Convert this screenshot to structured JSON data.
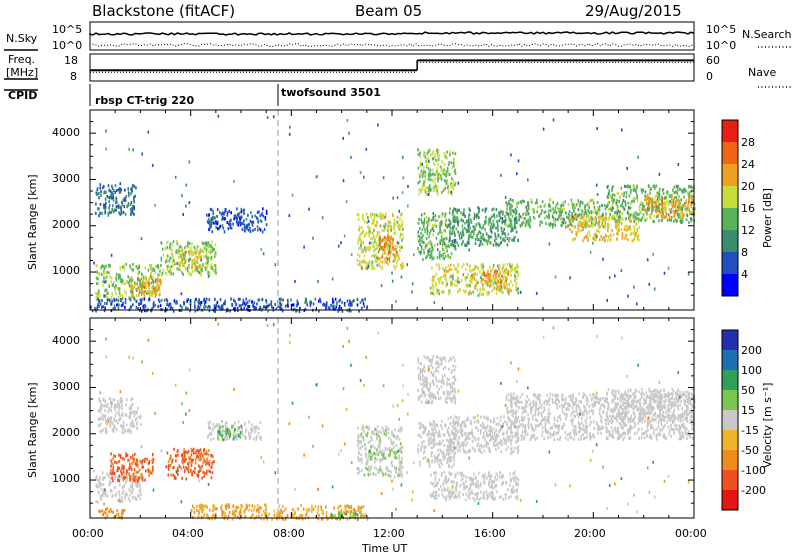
{
  "header": {
    "station": "Blackstone (fitACF)",
    "beam": "Beam 05",
    "date": "29/Aug/2015"
  },
  "status_panels": {
    "nsky_label": "N.Sky",
    "nsearch_label": "N.Search",
    "freq_label_line1": "Freq.",
    "freq_label_line2": "[MHz]",
    "nave_label": "Nave",
    "cpid_label": "CPID",
    "noise_left_ticks": [
      "10^5",
      "10^0"
    ],
    "noise_right_ticks": [
      "10^5",
      "10^0"
    ],
    "freq_left_ticks": [
      "18",
      "8"
    ],
    "freq_right_ticks": [
      "60",
      "0"
    ],
    "cpid_segments": [
      {
        "label": "rbsp CT-trig 220",
        "start_hour": 0
      },
      {
        "label": "twofsound 3501",
        "start_hour": 7.5
      }
    ]
  },
  "axes": {
    "x_label": "Time UT",
    "x_ticks": [
      "00:00",
      "04:00",
      "08:00",
      "12:00",
      "16:00",
      "20:00",
      "00:00"
    ],
    "y_label": "Slant Range [km]",
    "y_ticks": [
      "1000",
      "2000",
      "3000",
      "4000"
    ]
  },
  "power_colorbar": {
    "label": "Power [dB]",
    "ticks": [
      "4",
      "8",
      "12",
      "16",
      "20",
      "24",
      "28"
    ],
    "colors": [
      "#0000ff",
      "#2050c0",
      "#3a8c6a",
      "#57b25a",
      "#c8dc3c",
      "#f0a020",
      "#f06414",
      "#e61e14"
    ]
  },
  "velocity_colorbar": {
    "label": "Velocity [m s⁻¹]",
    "ticks": [
      "200",
      "100",
      "50",
      "15",
      "-15",
      "-50",
      "-100",
      "-200"
    ],
    "colors": [
      "#2030b0",
      "#1e6eb4",
      "#2ea05a",
      "#78c850",
      "#c8c8c8",
      "#f0b428",
      "#f08c1e",
      "#f0501e",
      "#e61414"
    ]
  },
  "chart_data": {
    "type": "heatmap",
    "x_unit": "hours UT",
    "xlim": [
      0,
      24
    ],
    "ylim": [
      180,
      4500
    ],
    "y_unit": "km",
    "dashed_marker_hour": 7.5,
    "power_regions": [
      {
        "t0": 0.2,
        "t1": 1.8,
        "r0": 2250,
        "r1": 2900,
        "level": 8
      },
      {
        "t0": 0.2,
        "t1": 2.8,
        "r0": 450,
        "r1": 1200,
        "level": 16
      },
      {
        "t0": 1.6,
        "t1": 2.8,
        "r0": 500,
        "r1": 900,
        "level": 22
      },
      {
        "t0": 2.8,
        "t1": 5.0,
        "r0": 950,
        "r1": 1700,
        "level": 16
      },
      {
        "t0": 3.5,
        "t1": 4.4,
        "r0": 1100,
        "r1": 1500,
        "level": 20
      },
      {
        "t0": 4.6,
        "t1": 7.0,
        "r0": 1900,
        "r1": 2400,
        "level": 6
      },
      {
        "t0": 0.0,
        "t1": 11.0,
        "r0": 180,
        "r1": 450,
        "level": 6
      },
      {
        "t0": 10.6,
        "t1": 12.4,
        "r0": 1100,
        "r1": 2300,
        "level": 18
      },
      {
        "t0": 11.4,
        "t1": 12.2,
        "r0": 1300,
        "r1": 1800,
        "level": 24
      },
      {
        "t0": 13.0,
        "t1": 14.5,
        "r0": 2700,
        "r1": 3700,
        "level": 16
      },
      {
        "t0": 13.0,
        "t1": 14.5,
        "r0": 1300,
        "r1": 2300,
        "level": 14
      },
      {
        "t0": 14.2,
        "t1": 17.0,
        "r0": 1600,
        "r1": 2400,
        "level": 12
      },
      {
        "t0": 13.5,
        "t1": 17.0,
        "r0": 550,
        "r1": 1200,
        "level": 18
      },
      {
        "t0": 15.5,
        "t1": 16.6,
        "r0": 650,
        "r1": 1050,
        "level": 22
      },
      {
        "t0": 16.5,
        "t1": 20.5,
        "r0": 2000,
        "r1": 2600,
        "level": 14
      },
      {
        "t0": 19.0,
        "t1": 21.8,
        "r0": 1700,
        "r1": 2250,
        "level": 20
      },
      {
        "t0": 20.5,
        "t1": 24.0,
        "r0": 2100,
        "r1": 2900,
        "level": 14
      },
      {
        "t0": 22.0,
        "t1": 24.0,
        "r0": 2200,
        "r1": 2700,
        "level": 22
      }
    ],
    "velocity_regions": [
      {
        "t0": 0.3,
        "t1": 2.0,
        "r0": 2050,
        "r1": 2800,
        "vel": 0
      },
      {
        "t0": 0.2,
        "t1": 2.0,
        "r0": 550,
        "r1": 1200,
        "vel": 0
      },
      {
        "t0": 0.8,
        "t1": 2.5,
        "r0": 1000,
        "r1": 1600,
        "vel": -80
      },
      {
        "t0": 3.0,
        "t1": 4.9,
        "r0": 1050,
        "r1": 1700,
        "vel": -80
      },
      {
        "t0": 4.6,
        "t1": 6.8,
        "r0": 1900,
        "r1": 2300,
        "vel": 0
      },
      {
        "t0": 5.0,
        "t1": 6.0,
        "r0": 1900,
        "r1": 2200,
        "vel": 30
      },
      {
        "t0": 0.3,
        "t1": 1.4,
        "r0": 200,
        "r1": 420,
        "vel": -40
      },
      {
        "t0": 4.0,
        "t1": 11.0,
        "r0": 180,
        "r1": 500,
        "vel": -30
      },
      {
        "t0": 9.5,
        "t1": 10.8,
        "r0": 180,
        "r1": 320,
        "vel": 30
      },
      {
        "t0": 10.6,
        "t1": 12.4,
        "r0": 1100,
        "r1": 2200,
        "vel": 10
      },
      {
        "t0": 13.0,
        "t1": 14.5,
        "r0": 2700,
        "r1": 3700,
        "vel": 0
      },
      {
        "t0": 13.0,
        "t1": 14.5,
        "r0": 1300,
        "r1": 2300,
        "vel": 0
      },
      {
        "t0": 14.2,
        "t1": 17.0,
        "r0": 1600,
        "r1": 2400,
        "vel": 0
      },
      {
        "t0": 13.5,
        "t1": 17.0,
        "r0": 600,
        "r1": 1200,
        "vel": 0
      },
      {
        "t0": 16.5,
        "t1": 24.0,
        "r0": 1900,
        "r1": 2900,
        "vel": 0
      },
      {
        "t0": 20.5,
        "t1": 24.0,
        "r0": 2300,
        "r1": 3000,
        "vel": 0
      }
    ],
    "frequency_steps": [
      {
        "t0": 0,
        "t1": 13.0,
        "level": 0.25
      },
      {
        "t0": 13.0,
        "t1": 24.0,
        "level": 0.95
      }
    ]
  }
}
